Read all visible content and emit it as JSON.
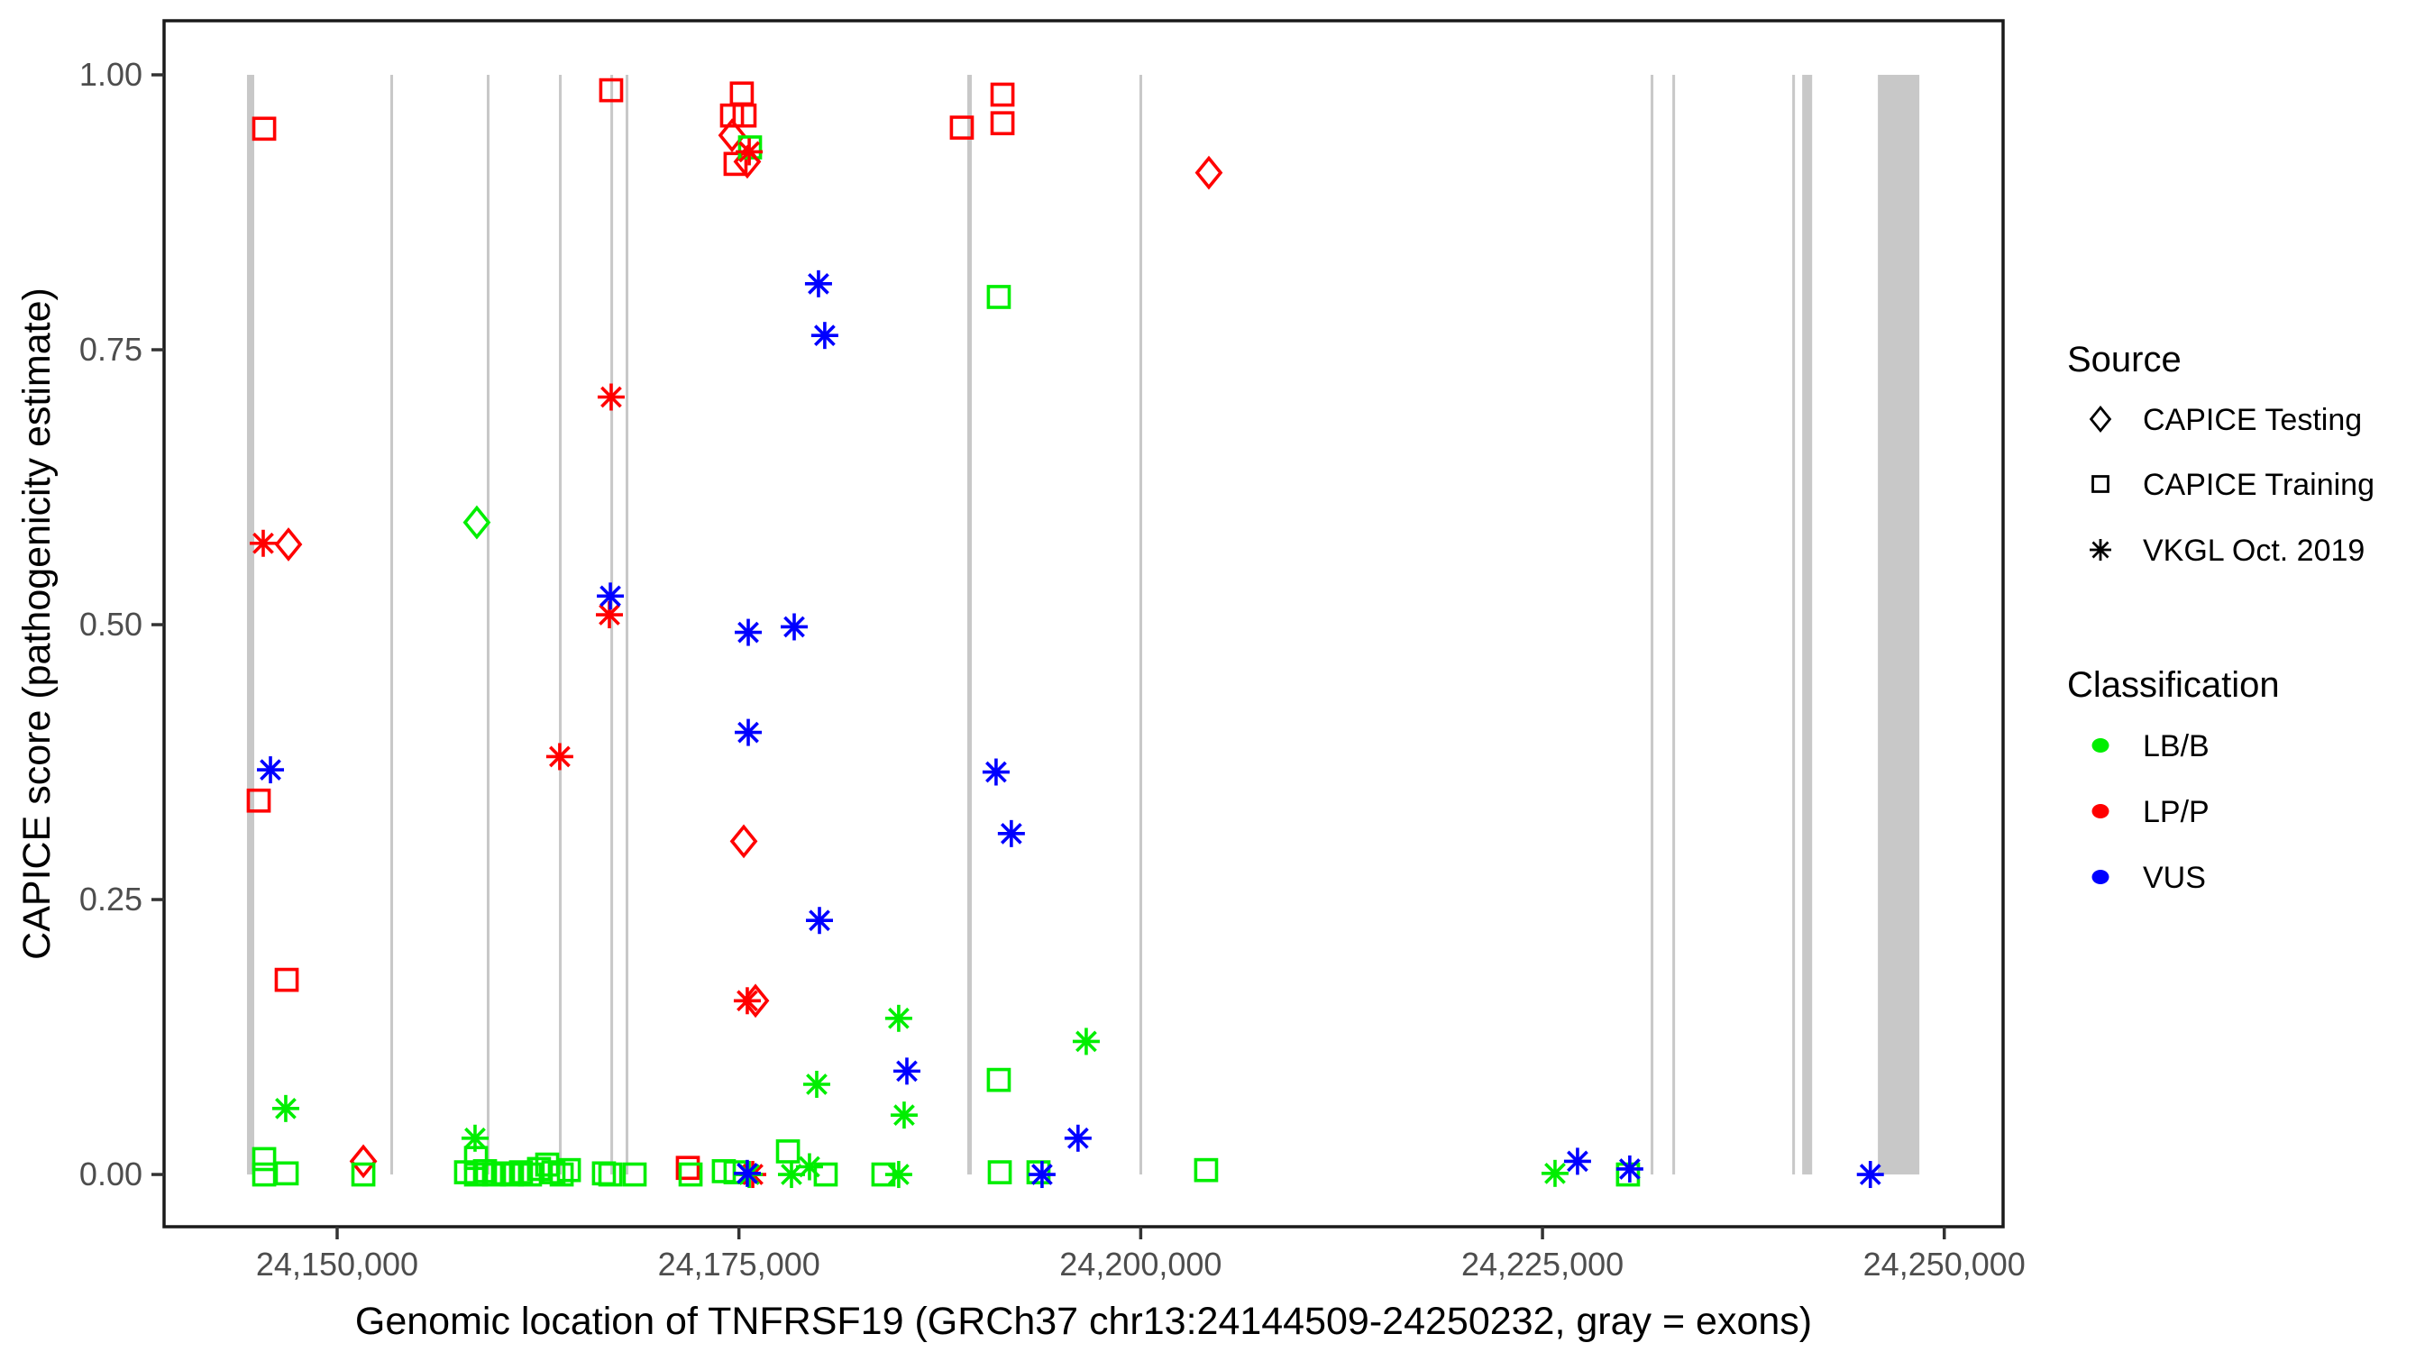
{
  "colors": {
    "lbb_green": "#00EE00",
    "lpp_red": "#FF0000",
    "vus_blue": "#0000FF",
    "exon_gray": "#C8C8C8",
    "axis_text": "#4D4D4D",
    "tick_mark": "#333333",
    "panel_border": "#1A1A1A",
    "background": "#FFFFFF"
  },
  "legend": {
    "source_title": "Source",
    "source_items": [
      {
        "label": "CAPICE Testing",
        "marker": "diamond-icon"
      },
      {
        "label": "CAPICE Training",
        "marker": "square-icon"
      },
      {
        "label": "VKGL Oct. 2019",
        "marker": "asterisk-icon"
      }
    ],
    "classification_title": "Classification",
    "classification_items": [
      {
        "label": "LB/B",
        "class": "LB/B"
      },
      {
        "label": "LP/P",
        "class": "LP/P"
      },
      {
        "label": "VUS",
        "class": "VUS"
      }
    ]
  },
  "chart_data": {
    "type": "scatter",
    "title": "",
    "xlabel": "Genomic location of TNFRSF19 (GRCh37 chr13:24144509-24250232, gray = exons)",
    "ylabel": "CAPICE score (pathogenicity estimate)",
    "xlim": [
      24139230,
      24253660
    ],
    "ylim": [
      -0.0475,
      1.0492
    ],
    "grid": false,
    "legend_position": "right",
    "x_ticks": [
      {
        "value": 24150000,
        "label": "24,150,000"
      },
      {
        "value": 24175000,
        "label": "24,175,000"
      },
      {
        "value": 24200000,
        "label": "24,200,000"
      },
      {
        "value": 24225000,
        "label": "24,225,000"
      },
      {
        "value": 24250000,
        "label": "24,250,000"
      }
    ],
    "y_ticks": [
      {
        "value": 0.0,
        "label": "0.00"
      },
      {
        "value": 0.25,
        "label": "0.25"
      },
      {
        "value": 0.5,
        "label": "0.50"
      },
      {
        "value": 0.75,
        "label": "0.75"
      },
      {
        "value": 1.0,
        "label": "1.00"
      }
    ],
    "marker_for_source": {
      "CAPICE Testing": "diamond",
      "CAPICE Training": "square",
      "VKGL Oct. 2019": "asterisk"
    },
    "color_for_class": {
      "LB/B": "#00EE00",
      "LP/P": "#FF0000",
      "VUS": "#0000FF"
    },
    "exons": [
      {
        "start": 24144390,
        "end": 24144840
      },
      {
        "start": 24153310,
        "end": 24153480
      },
      {
        "start": 24159310,
        "end": 24159480
      },
      {
        "start": 24163800,
        "end": 24163970
      },
      {
        "start": 24167000,
        "end": 24167170
      },
      {
        "start": 24167950,
        "end": 24168120
      },
      {
        "start": 24189210,
        "end": 24189490
      },
      {
        "start": 24199920,
        "end": 24200090
      },
      {
        "start": 24231730,
        "end": 24231900
      },
      {
        "start": 24233080,
        "end": 24233250
      },
      {
        "start": 24240540,
        "end": 24240710
      },
      {
        "start": 24241160,
        "end": 24241780
      },
      {
        "start": 24245870,
        "end": 24248450
      }
    ],
    "points": [
      {
        "pos": 24146970,
        "score": 0.573,
        "source": "CAPICE Testing",
        "class": "LP/P"
      },
      {
        "pos": 24151630,
        "score": 0.012,
        "source": "CAPICE Testing",
        "class": "LP/P"
      },
      {
        "pos": 24158690,
        "score": 0.593,
        "source": "CAPICE Testing",
        "class": "LB/B"
      },
      {
        "pos": 24174570,
        "score": 0.945,
        "source": "CAPICE Testing",
        "class": "LP/P"
      },
      {
        "pos": 24175520,
        "score": 0.921,
        "source": "CAPICE Testing",
        "class": "LP/P"
      },
      {
        "pos": 24176030,
        "score": 0.158,
        "source": "CAPICE Testing",
        "class": "LP/P"
      },
      {
        "pos": 24175300,
        "score": 0.303,
        "source": "CAPICE Testing",
        "class": "LP/P"
      },
      {
        "pos": 24204240,
        "score": 0.911,
        "source": "CAPICE Testing",
        "class": "LP/P"
      },
      {
        "pos": 24145460,
        "score": 0.951,
        "source": "CAPICE Training",
        "class": "LP/P"
      },
      {
        "pos": 24145120,
        "score": 0.34,
        "source": "CAPICE Training",
        "class": "LP/P"
      },
      {
        "pos": 24146860,
        "score": 0.177,
        "source": "CAPICE Training",
        "class": "LP/P"
      },
      {
        "pos": 24167050,
        "score": 0.986,
        "source": "CAPICE Training",
        "class": "LP/P"
      },
      {
        "pos": 24175180,
        "score": 0.983,
        "source": "CAPICE Training",
        "class": "LP/P"
      },
      {
        "pos": 24174570,
        "score": 0.963,
        "source": "CAPICE Training",
        "class": "LP/P"
      },
      {
        "pos": 24175350,
        "score": 0.963,
        "source": "CAPICE Training",
        "class": "LP/P"
      },
      {
        "pos": 24174790,
        "score": 0.919,
        "source": "CAPICE Training",
        "class": "LP/P"
      },
      {
        "pos": 24171820,
        "score": 0.006,
        "source": "CAPICE Training",
        "class": "LP/P"
      },
      {
        "pos": 24188870,
        "score": 0.952,
        "source": "CAPICE Training",
        "class": "LP/P"
      },
      {
        "pos": 24191400,
        "score": 0.982,
        "source": "CAPICE Training",
        "class": "LP/P"
      },
      {
        "pos": 24191400,
        "score": 0.956,
        "source": "CAPICE Training",
        "class": "LP/P"
      },
      {
        "pos": 24175690,
        "score": 0.934,
        "source": "CAPICE Training",
        "class": "LB/B"
      },
      {
        "pos": 24191170,
        "score": 0.798,
        "source": "CAPICE Training",
        "class": "LB/B"
      },
      {
        "pos": 24191170,
        "score": 0.086,
        "source": "CAPICE Training",
        "class": "LB/B"
      },
      {
        "pos": 24178050,
        "score": 0.021,
        "source": "CAPICE Training",
        "class": "LB/B"
      },
      {
        "pos": 24145460,
        "score": 0.014,
        "source": "CAPICE Training",
        "class": "LB/B"
      },
      {
        "pos": 24145460,
        "score": 0.0,
        "source": "CAPICE Training",
        "class": "LB/B"
      },
      {
        "pos": 24146860,
        "score": 0.001,
        "source": "CAPICE Training",
        "class": "LB/B"
      },
      {
        "pos": 24151630,
        "score": 0.0,
        "source": "CAPICE Training",
        "class": "LB/B"
      },
      {
        "pos": 24158640,
        "score": 0.015,
        "source": "CAPICE Training",
        "class": "LB/B"
      },
      {
        "pos": 24158020,
        "score": 0.002,
        "source": "CAPICE Training",
        "class": "LB/B"
      },
      {
        "pos": 24158640,
        "score": 0.0,
        "source": "CAPICE Training",
        "class": "LB/B"
      },
      {
        "pos": 24159200,
        "score": 0.003,
        "source": "CAPICE Training",
        "class": "LB/B"
      },
      {
        "pos": 24159760,
        "score": 0.0,
        "source": "CAPICE Training",
        "class": "LB/B"
      },
      {
        "pos": 24160320,
        "score": 0.001,
        "source": "CAPICE Training",
        "class": "LB/B"
      },
      {
        "pos": 24160880,
        "score": 0.0,
        "source": "CAPICE Training",
        "class": "LB/B"
      },
      {
        "pos": 24161440,
        "score": 0.002,
        "source": "CAPICE Training",
        "class": "LB/B"
      },
      {
        "pos": 24162000,
        "score": 0.0,
        "source": "CAPICE Training",
        "class": "LB/B"
      },
      {
        "pos": 24162560,
        "score": 0.005,
        "source": "CAPICE Training",
        "class": "LB/B"
      },
      {
        "pos": 24163070,
        "score": 0.009,
        "source": "CAPICE Training",
        "class": "LB/B"
      },
      {
        "pos": 24163460,
        "score": 0.002,
        "source": "CAPICE Training",
        "class": "LB/B"
      },
      {
        "pos": 24163970,
        "score": 0.0,
        "source": "CAPICE Training",
        "class": "LB/B"
      },
      {
        "pos": 24164420,
        "score": 0.004,
        "source": "CAPICE Training",
        "class": "LB/B"
      },
      {
        "pos": 24166600,
        "score": 0.001,
        "source": "CAPICE Training",
        "class": "LB/B"
      },
      {
        "pos": 24167000,
        "score": 0.0,
        "source": "CAPICE Training",
        "class": "LB/B"
      },
      {
        "pos": 24168510,
        "score": 0.0,
        "source": "CAPICE Training",
        "class": "LB/B"
      },
      {
        "pos": 24171990,
        "score": 0.0,
        "source": "CAPICE Training",
        "class": "LB/B"
      },
      {
        "pos": 24174060,
        "score": 0.003,
        "source": "CAPICE Training",
        "class": "LB/B"
      },
      {
        "pos": 24174790,
        "score": 0.002,
        "source": "CAPICE Training",
        "class": "LB/B"
      },
      {
        "pos": 24180400,
        "score": 0.0,
        "source": "CAPICE Training",
        "class": "LB/B"
      },
      {
        "pos": 24183990,
        "score": 0.0,
        "source": "CAPICE Training",
        "class": "LB/B"
      },
      {
        "pos": 24191230,
        "score": 0.002,
        "source": "CAPICE Training",
        "class": "LB/B"
      },
      {
        "pos": 24193640,
        "score": 0.002,
        "source": "CAPICE Training",
        "class": "LB/B"
      },
      {
        "pos": 24204070,
        "score": 0.004,
        "source": "CAPICE Training",
        "class": "LB/B"
      },
      {
        "pos": 24230320,
        "score": 0.0,
        "source": "CAPICE Training",
        "class": "LB/B"
      },
      {
        "pos": 24145400,
        "score": 0.574,
        "source": "VKGL Oct. 2019",
        "class": "LP/P"
      },
      {
        "pos": 24163850,
        "score": 0.38,
        "source": "VKGL Oct. 2019",
        "class": "LP/P"
      },
      {
        "pos": 24167050,
        "score": 0.707,
        "source": "VKGL Oct. 2019",
        "class": "LP/P"
      },
      {
        "pos": 24166940,
        "score": 0.509,
        "source": "VKGL Oct. 2019",
        "class": "LP/P"
      },
      {
        "pos": 24175640,
        "score": 0.93,
        "source": "VKGL Oct. 2019",
        "class": "LP/P"
      },
      {
        "pos": 24175520,
        "score": 0.158,
        "source": "VKGL Oct. 2019",
        "class": "LP/P"
      },
      {
        "pos": 24175860,
        "score": 0.0,
        "source": "VKGL Oct. 2019",
        "class": "LP/P"
      },
      {
        "pos": 24146800,
        "score": 0.06,
        "source": "VKGL Oct. 2019",
        "class": "LB/B"
      },
      {
        "pos": 24158580,
        "score": 0.033,
        "source": "VKGL Oct. 2019",
        "class": "LB/B"
      },
      {
        "pos": 24175640,
        "score": 0.0,
        "source": "VKGL Oct. 2019",
        "class": "LB/B"
      },
      {
        "pos": 24178270,
        "score": 0.0,
        "source": "VKGL Oct. 2019",
        "class": "LB/B"
      },
      {
        "pos": 24179390,
        "score": 0.007,
        "source": "VKGL Oct. 2019",
        "class": "LB/B"
      },
      {
        "pos": 24179840,
        "score": 0.082,
        "source": "VKGL Oct. 2019",
        "class": "LB/B"
      },
      {
        "pos": 24184940,
        "score": 0.142,
        "source": "VKGL Oct. 2019",
        "class": "LB/B"
      },
      {
        "pos": 24185280,
        "score": 0.054,
        "source": "VKGL Oct. 2019",
        "class": "LB/B"
      },
      {
        "pos": 24184940,
        "score": 0.0,
        "source": "VKGL Oct. 2019",
        "class": "LB/B"
      },
      {
        "pos": 24196610,
        "score": 0.121,
        "source": "VKGL Oct. 2019",
        "class": "LB/B"
      },
      {
        "pos": 24225780,
        "score": 0.001,
        "source": "VKGL Oct. 2019",
        "class": "LB/B"
      },
      {
        "pos": 24145850,
        "score": 0.368,
        "source": "VKGL Oct. 2019",
        "class": "VUS"
      },
      {
        "pos": 24167000,
        "score": 0.526,
        "source": "VKGL Oct. 2019",
        "class": "VUS"
      },
      {
        "pos": 24175580,
        "score": 0.493,
        "source": "VKGL Oct. 2019",
        "class": "VUS"
      },
      {
        "pos": 24178440,
        "score": 0.498,
        "source": "VKGL Oct. 2019",
        "class": "VUS"
      },
      {
        "pos": 24175580,
        "score": 0.402,
        "source": "VKGL Oct. 2019",
        "class": "VUS"
      },
      {
        "pos": 24179950,
        "score": 0.81,
        "source": "VKGL Oct. 2019",
        "class": "VUS"
      },
      {
        "pos": 24180340,
        "score": 0.763,
        "source": "VKGL Oct. 2019",
        "class": "VUS"
      },
      {
        "pos": 24180010,
        "score": 0.231,
        "source": "VKGL Oct. 2019",
        "class": "VUS"
      },
      {
        "pos": 24175520,
        "score": 0.001,
        "source": "VKGL Oct. 2019",
        "class": "VUS"
      },
      {
        "pos": 24191000,
        "score": 0.366,
        "source": "VKGL Oct. 2019",
        "class": "VUS"
      },
      {
        "pos": 24191950,
        "score": 0.31,
        "source": "VKGL Oct. 2019",
        "class": "VUS"
      },
      {
        "pos": 24185450,
        "score": 0.094,
        "source": "VKGL Oct. 2019",
        "class": "VUS"
      },
      {
        "pos": 24193860,
        "score": 0.0,
        "source": "VKGL Oct. 2019",
        "class": "VUS"
      },
      {
        "pos": 24196100,
        "score": 0.033,
        "source": "VKGL Oct. 2019",
        "class": "VUS"
      },
      {
        "pos": 24227180,
        "score": 0.012,
        "source": "VKGL Oct. 2019",
        "class": "VUS"
      },
      {
        "pos": 24230430,
        "score": 0.005,
        "source": "VKGL Oct. 2019",
        "class": "VUS"
      },
      {
        "pos": 24245400,
        "score": 0.0,
        "source": "VKGL Oct. 2019",
        "class": "VUS"
      }
    ]
  }
}
